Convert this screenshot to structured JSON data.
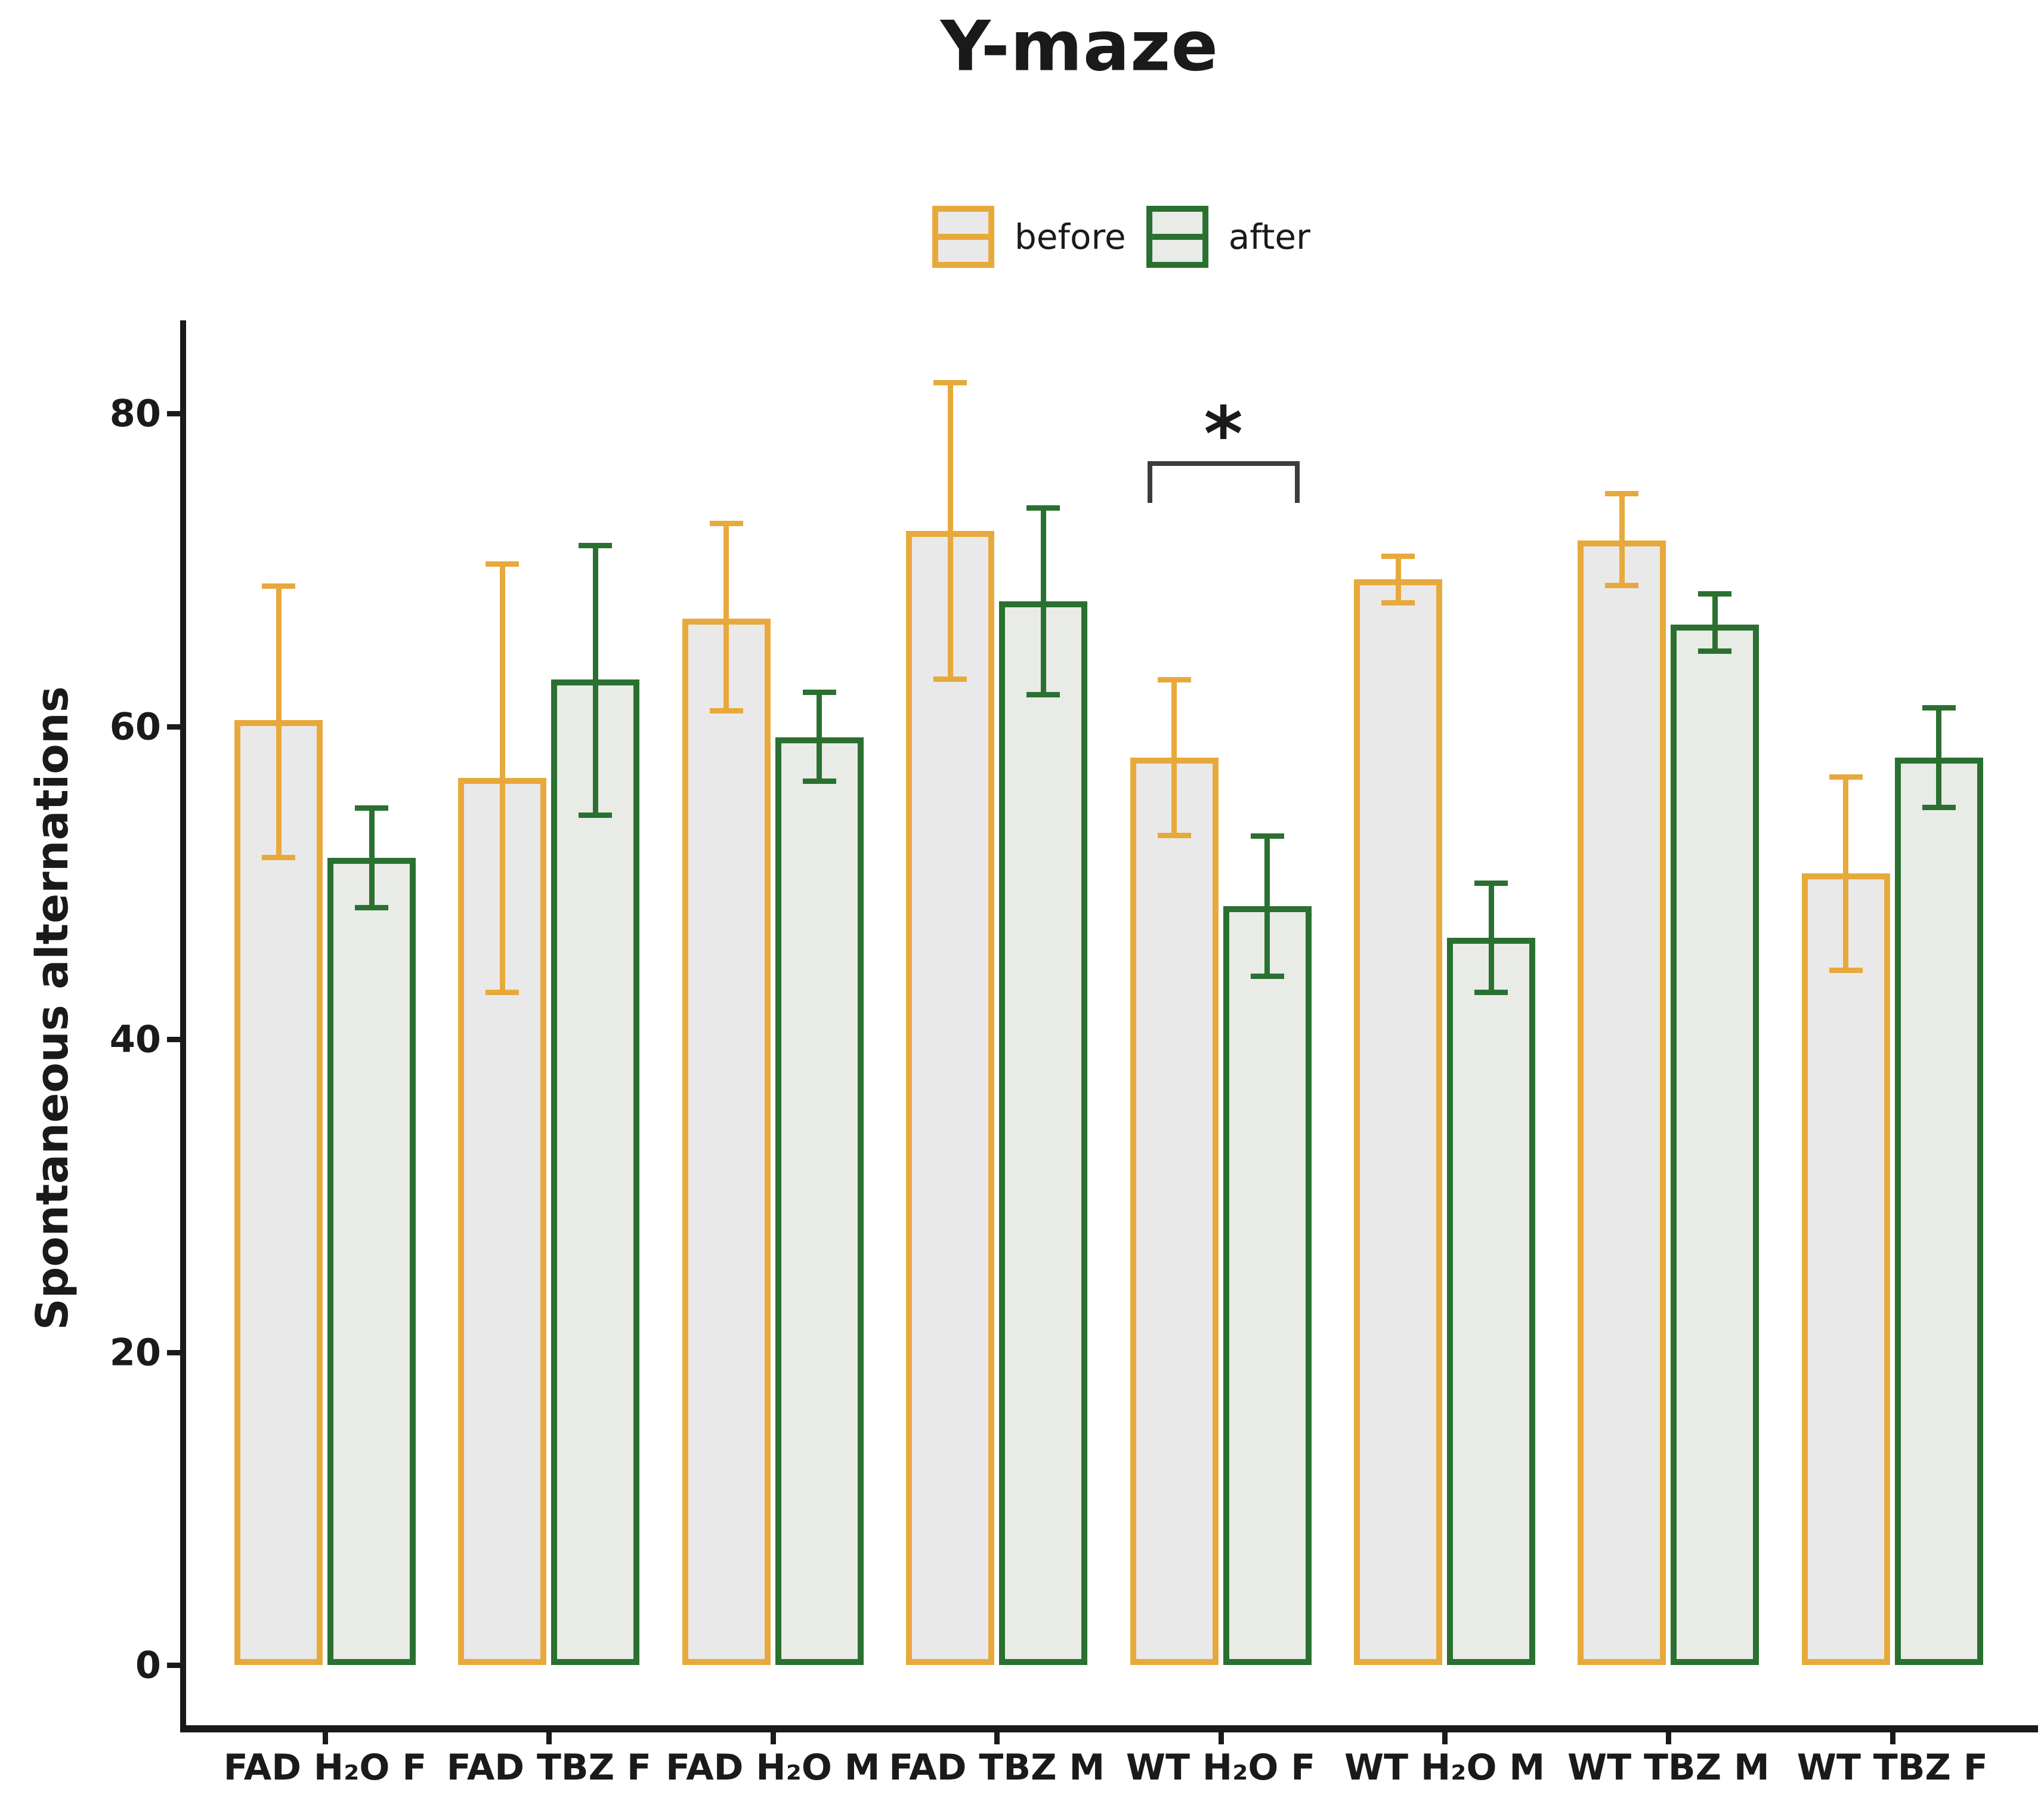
{
  "chart_data": {
    "type": "bar",
    "title": "Y-maze",
    "ylabel": "Spontaneous alternations",
    "xlabel": "",
    "categories": [
      "FAD H₂O F",
      "FAD TBZ F",
      "FAD H₂O M",
      "FAD TBZ M",
      "WT H₂O F",
      "WT H₂O M",
      "WT TBZ M",
      "WT TBZ F"
    ],
    "series": [
      {
        "name": "before",
        "color": "#E8A93C",
        "fill": "#E9E9E9",
        "values": [
          60.4,
          56.7,
          66.9,
          72.5,
          58.0,
          69.4,
          71.9,
          50.6
        ],
        "err_low": [
          51.6,
          43.0,
          61.0,
          63.0,
          53.0,
          67.9,
          69.0,
          44.4
        ],
        "err_high": [
          69.0,
          70.4,
          73.0,
          82.0,
          63.0,
          70.9,
          74.9,
          56.8
        ]
      },
      {
        "name": "after",
        "color": "#2A7030",
        "fill": "#E8EBE6",
        "values": [
          51.6,
          63.0,
          59.3,
          68.0,
          48.5,
          46.5,
          66.5,
          58.0
        ],
        "err_low": [
          48.4,
          54.3,
          56.5,
          62.0,
          44.0,
          43.0,
          64.8,
          54.8
        ],
        "err_high": [
          54.8,
          71.6,
          62.2,
          74.0,
          53.0,
          50.0,
          68.5,
          61.2
        ]
      }
    ],
    "yticks": [
      0,
      20,
      40,
      60,
      80
    ],
    "ylim": [
      0,
      86
    ],
    "grid": "off",
    "legend_position": "top",
    "annotation": {
      "label": "*",
      "category": "WT H₂O F",
      "between": [
        "before",
        "after"
      ]
    }
  }
}
